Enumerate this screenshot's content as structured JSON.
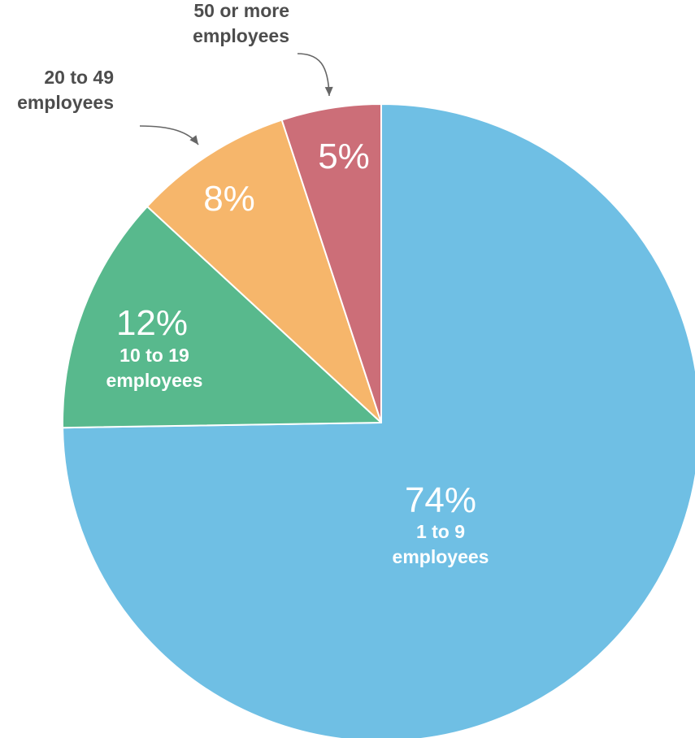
{
  "chart_data": {
    "type": "pie",
    "start": "12 o'clock",
    "direction": "clockwise",
    "slices": [
      {
        "label_lines": [
          "1 to 9",
          "employees"
        ],
        "percent_text": "74%",
        "value": 74,
        "color": "#6fbfe4",
        "label_position": "inside"
      },
      {
        "label_lines": [
          "10 to 19",
          "employees"
        ],
        "percent_text": "12%",
        "value": 12,
        "color": "#58b98d",
        "label_position": "inside"
      },
      {
        "label_lines": [
          "20 to 49",
          "employees"
        ],
        "percent_text": "8%",
        "value": 8,
        "color": "#f6b66b",
        "label_position": "outside"
      },
      {
        "label_lines": [
          "50 or more",
          "employees"
        ],
        "percent_text": "5%",
        "value": 5,
        "color": "#cc6e78",
        "label_position": "outside"
      }
    ]
  }
}
